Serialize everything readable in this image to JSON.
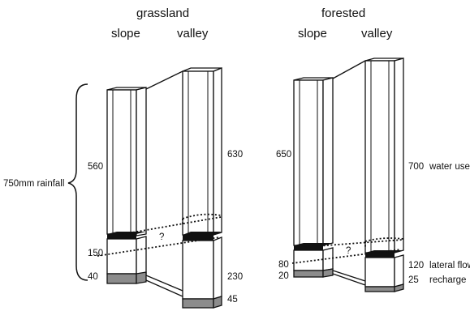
{
  "panels": {
    "grassland": {
      "title": "grassland",
      "slope_label": "slope",
      "valley_label": "valley",
      "rainfall_label": "750mm rainfall",
      "slope_values": {
        "water_use": "560",
        "lateral_flow": "150",
        "recharge": "40"
      },
      "valley_values": {
        "water_use": "630",
        "lateral_flow": "230",
        "recharge": "45"
      },
      "unknown_mark": "?"
    },
    "forested": {
      "title": "forested",
      "slope_label": "slope",
      "valley_label": "valley",
      "slope_values": {
        "water_use": "650",
        "lateral_flow": "80",
        "recharge": "20"
      },
      "valley_values": {
        "water_use": "700",
        "lateral_flow": "120",
        "recharge": "25"
      },
      "unknown_mark": "?"
    }
  },
  "legend": {
    "water_use": "water use",
    "lateral_flow": "lateral flow",
    "recharge": "recharge"
  },
  "colors": {
    "stroke": "#111111",
    "recharge_fill": "#8c8c8c",
    "slab_fill": "#111111"
  }
}
